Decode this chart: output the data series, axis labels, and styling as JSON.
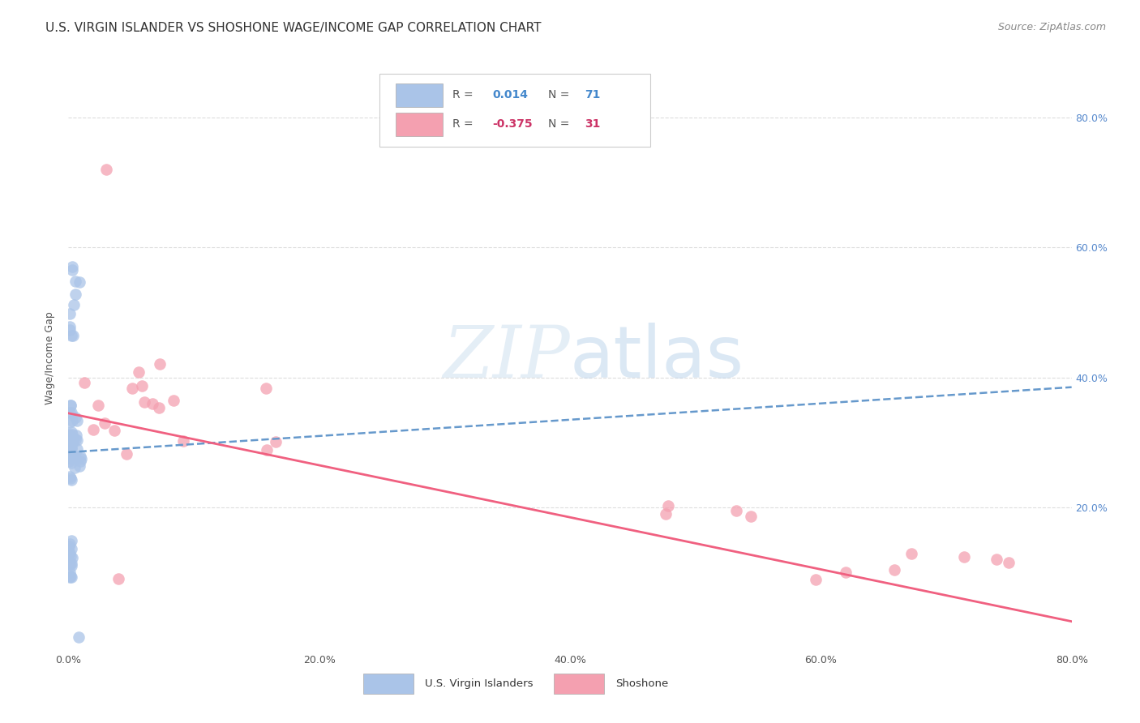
{
  "title": "U.S. VIRGIN ISLANDER VS SHOSHONE WAGE/INCOME GAP CORRELATION CHART",
  "source": "Source: ZipAtlas.com",
  "ylabel": "Wage/Income Gap",
  "xlim": [
    0.0,
    0.8
  ],
  "ylim": [
    -0.02,
    0.88
  ],
  "xtick_labels": [
    "0.0%",
    "20.0%",
    "40.0%",
    "60.0%",
    "80.0%"
  ],
  "xtick_vals": [
    0.0,
    0.2,
    0.4,
    0.6,
    0.8
  ],
  "ytick_labels": [
    "20.0%",
    "40.0%",
    "60.0%",
    "80.0%"
  ],
  "ytick_vals": [
    0.2,
    0.4,
    0.6,
    0.8
  ],
  "background_color": "#ffffff",
  "plot_bg_color": "#ffffff",
  "grid_color": "#dddddd",
  "blue_R": 0.014,
  "blue_N": 71,
  "pink_R": -0.375,
  "pink_N": 31,
  "blue_color": "#aac4e8",
  "pink_color": "#f4a0b0",
  "blue_trend_color": "#6699cc",
  "pink_trend_color": "#f06080",
  "legend_label_blue": "U.S. Virgin Islanders",
  "legend_label_pink": "Shoshone",
  "watermark_zip": "ZIP",
  "watermark_atlas": "atlas",
  "title_fontsize": 11,
  "axis_fontsize": 9,
  "tick_fontsize": 9
}
